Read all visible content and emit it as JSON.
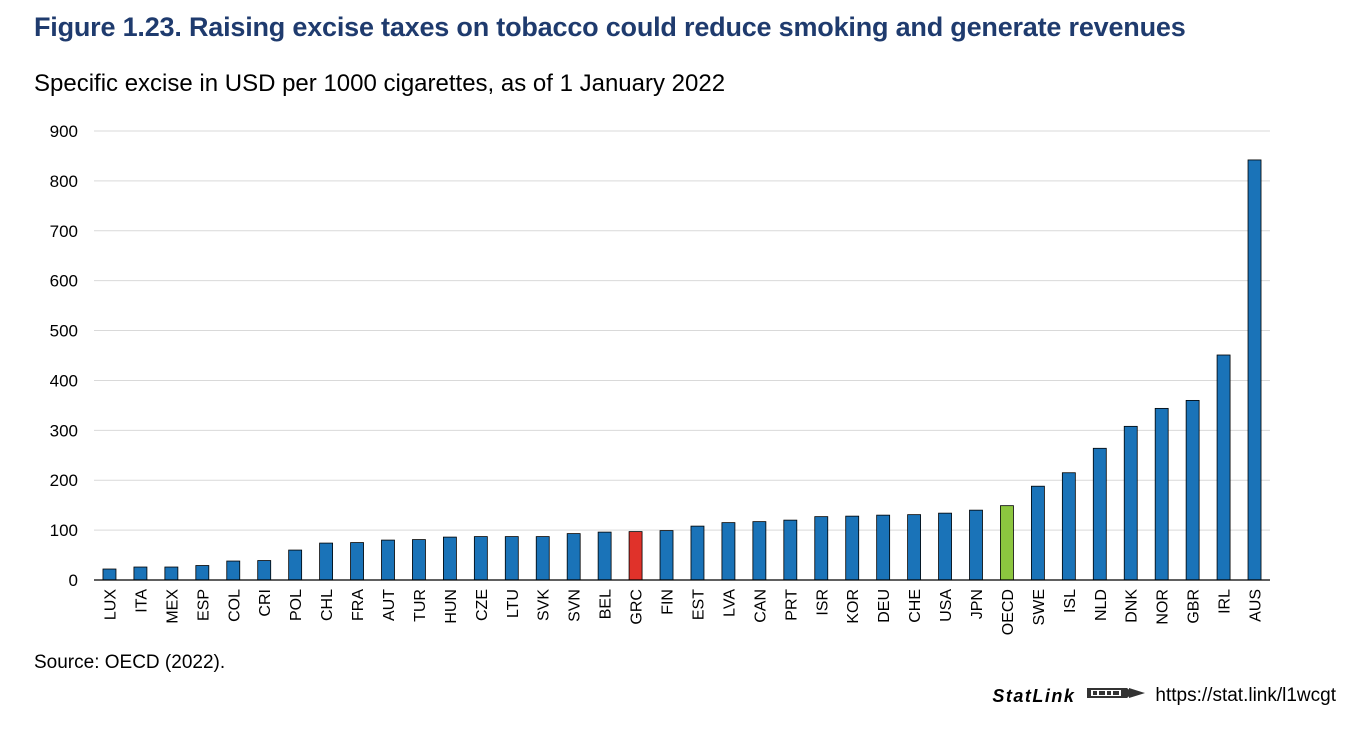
{
  "title": "Figure 1.23. Raising excise taxes on tobacco could reduce smoking and generate revenues",
  "subtitle": "Specific excise in USD per 1000 cigarettes, as of 1 January 2022",
  "source": "Source: OECD (2022).",
  "statlink": {
    "brand": "StatLink",
    "url": "https://stat.link/l1wcgt",
    "logo_icon": "statlink-logo-icon"
  },
  "colors": {
    "bar": "#1a73b8",
    "highlight_grc": "#e0322a",
    "highlight_oecd": "#8cc63f",
    "grid": "#d9d9d9",
    "title": "#1f3b6e"
  },
  "chart_data": {
    "type": "bar",
    "title": "Figure 1.23. Raising excise taxes on tobacco could reduce smoking and generate revenues",
    "subtitle": "Specific excise in USD per 1000 cigarettes, as of 1 January 2022",
    "xlabel": "",
    "ylabel": "",
    "ylim": [
      0,
      900
    ],
    "yticks": [
      0,
      100,
      200,
      300,
      400,
      500,
      600,
      700,
      800,
      900
    ],
    "grid": true,
    "legend": "none",
    "categories": [
      "LUX",
      "ITA",
      "MEX",
      "ESP",
      "COL",
      "CRI",
      "POL",
      "CHL",
      "FRA",
      "AUT",
      "TUR",
      "HUN",
      "CZE",
      "LTU",
      "SVK",
      "SVN",
      "BEL",
      "GRC",
      "FIN",
      "EST",
      "LVA",
      "CAN",
      "PRT",
      "ISR",
      "KOR",
      "DEU",
      "CHE",
      "USA",
      "JPN",
      "OECD",
      "SWE",
      "ISL",
      "NLD",
      "DNK",
      "NOR",
      "GBR",
      "IRL",
      "AUS"
    ],
    "values": [
      22,
      26,
      26,
      29,
      38,
      39,
      60,
      74,
      75,
      80,
      81,
      86,
      87,
      87,
      87,
      93,
      96,
      97,
      99,
      108,
      115,
      117,
      120,
      127,
      128,
      130,
      131,
      134,
      140,
      149,
      188,
      215,
      264,
      308,
      344,
      360,
      451,
      842
    ],
    "highlighted": {
      "GRC": "#e0322a",
      "OECD": "#8cc63f"
    }
  }
}
